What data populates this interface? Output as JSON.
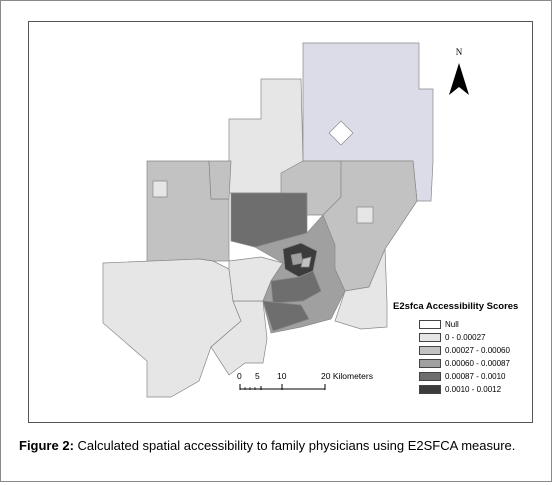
{
  "map": {
    "north_label": "N",
    "legend": {
      "title": "E2sfca Accessibility Scores",
      "classes": [
        {
          "label": "Null",
          "color": "#ffffff"
        },
        {
          "label": "0 - 0.00027",
          "color": "#e6e6e6"
        },
        {
          "label": "0.00027 - 0.00060",
          "color": "#c2c2c2"
        },
        {
          "label": "0.00060 - 0.00087",
          "color": "#a0a0a0"
        },
        {
          "label": "0.00087 - 0.0010",
          "color": "#6e6e6e"
        },
        {
          "label": "0.0010 - 0.0012",
          "color": "#3c3c3c"
        }
      ]
    },
    "scale_bar": {
      "ticks": [
        "0",
        "5",
        "10",
        "20 Kilometers"
      ]
    },
    "north_region_color": "#dcdce8"
  },
  "caption": {
    "prefix": "Figure 2:",
    "text": " Calculated spatial accessibility to family physicians using E2SFCA measure."
  }
}
